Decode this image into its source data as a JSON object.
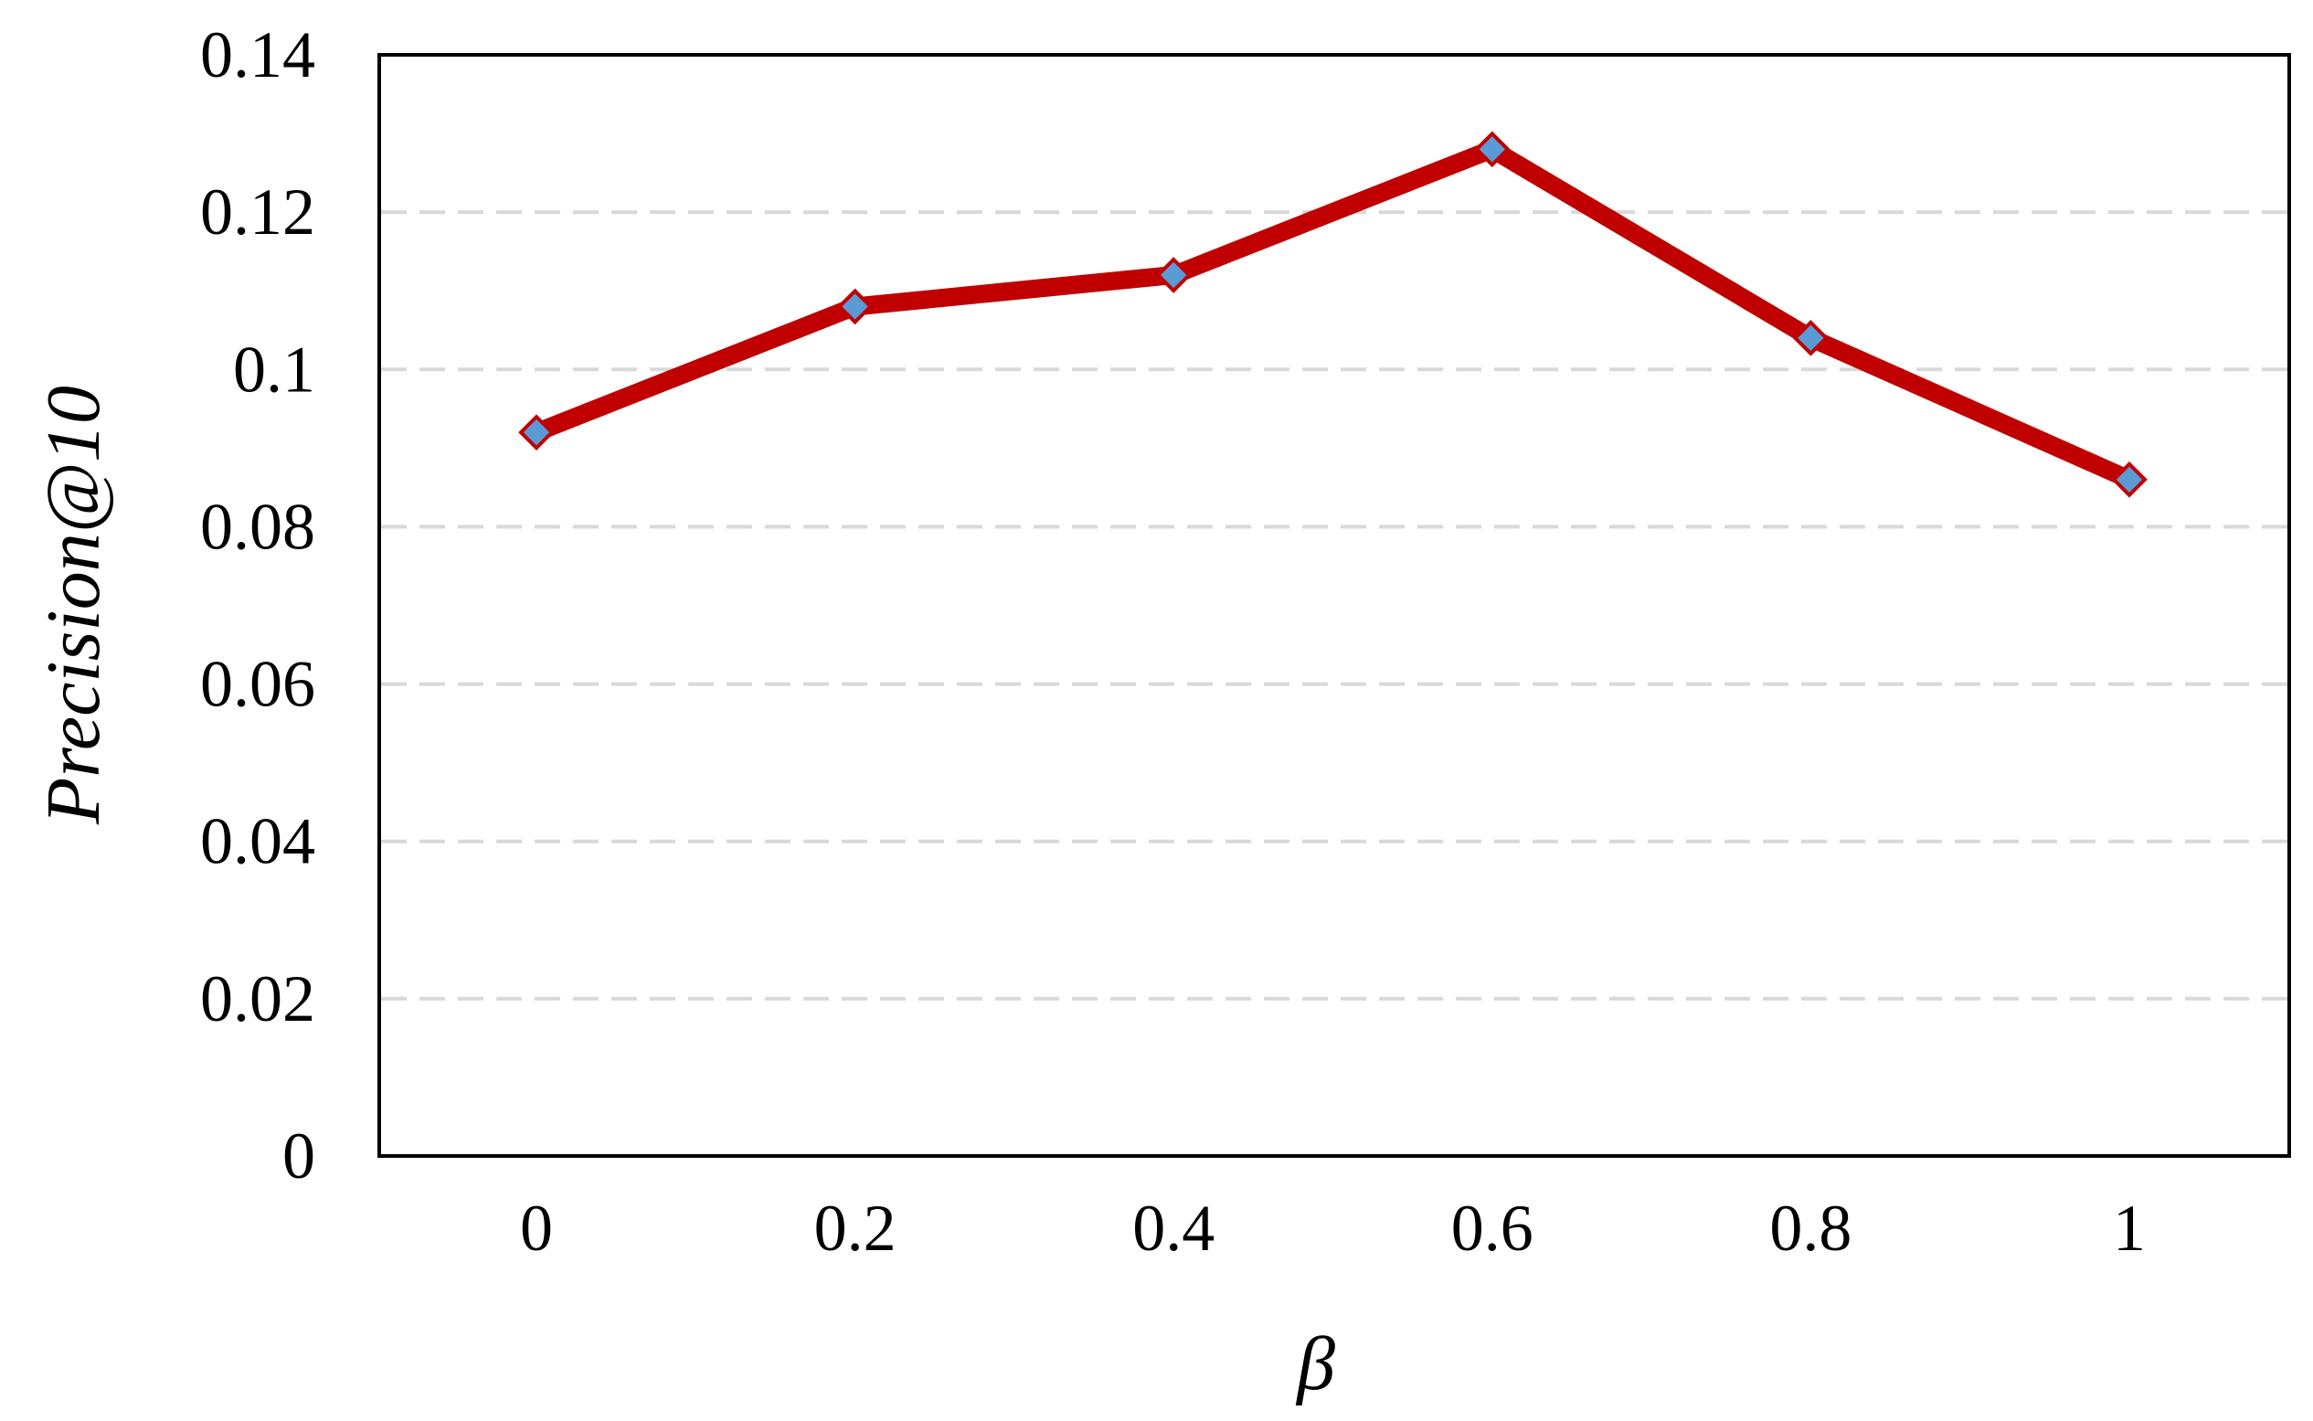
{
  "chart_data": {
    "type": "line",
    "xlabel": "β",
    "ylabel": "Precision@10",
    "x": [
      "0",
      "0.2",
      "0.4",
      "0.6",
      "0.8",
      "1"
    ],
    "y_ticks": [
      "0",
      "0.02",
      "0.04",
      "0.06",
      "0.08",
      "0.1",
      "0.12",
      "0.14"
    ],
    "ylim": [
      0,
      0.14
    ],
    "grid": "horizontal dashed",
    "legend": "none",
    "series": [
      {
        "values": [
          0.092,
          0.108,
          0.112,
          0.128,
          0.104,
          0.086
        ],
        "line_color": "#c00000",
        "marker": "diamond",
        "marker_color": "#5b9bd5"
      }
    ]
  }
}
